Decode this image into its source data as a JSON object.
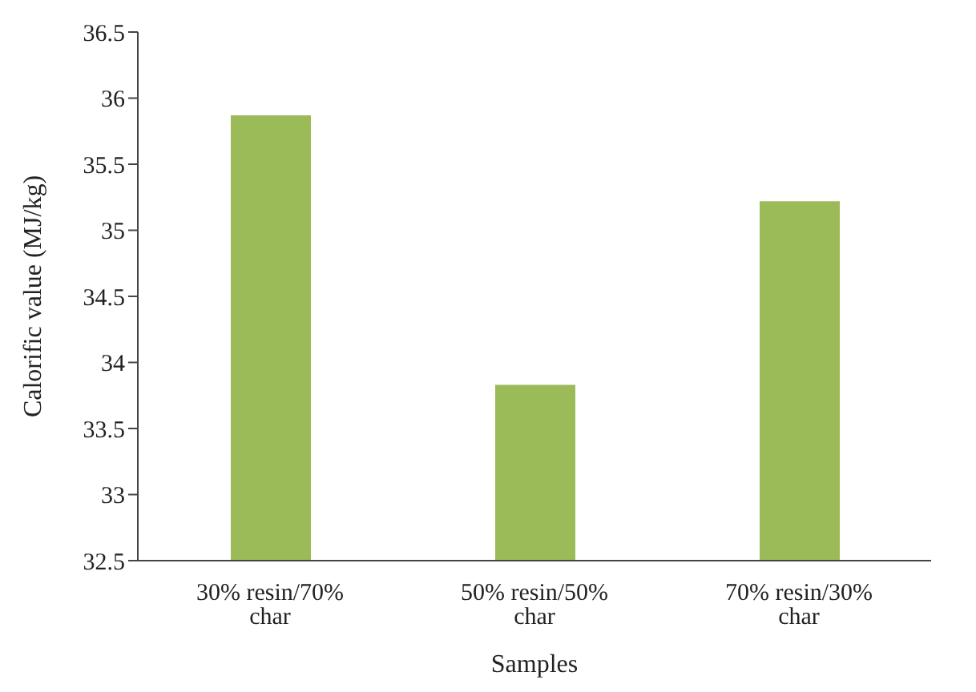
{
  "chart_data": {
    "type": "bar",
    "xlabel": "Samples",
    "ylabel": "Calorific value (MJ/kg)",
    "categories": [
      "30% resin/70% char",
      "50% resin/50% char",
      "70% resin/30% char"
    ],
    "values": [
      35.87,
      33.83,
      35.22
    ],
    "color": "#9bbb59",
    "ylim": [
      32.5,
      36.5
    ],
    "yticks": [
      32.5,
      33,
      33.5,
      34,
      34.5,
      35,
      35.5,
      36,
      36.5
    ],
    "grid": false
  }
}
